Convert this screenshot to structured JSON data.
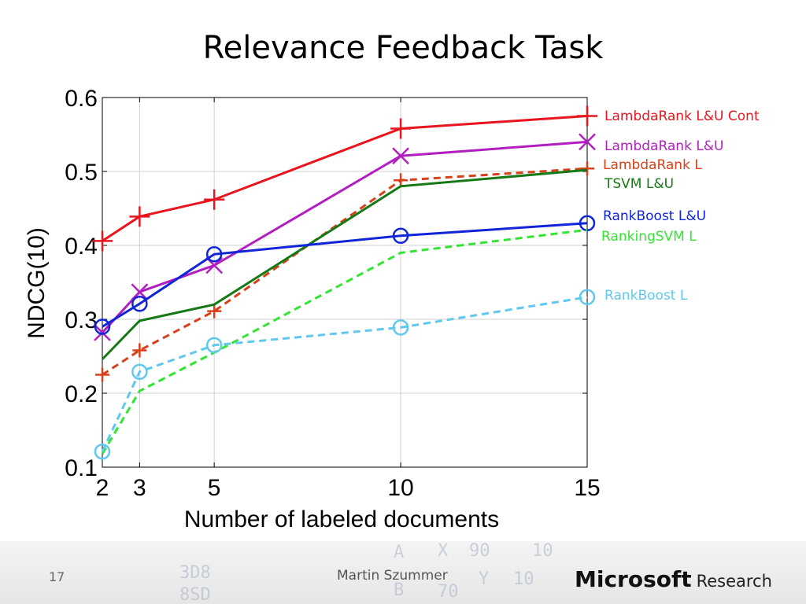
{
  "slide": {
    "title": "Relevance Feedback Task",
    "page_number": "17",
    "author": "Martin Szummer",
    "brand_name": "Microsoft",
    "brand_sub": "Research"
  },
  "chart_data": {
    "type": "line",
    "xlabel": "Number of labeled documents",
    "ylabel": "NDCG(10)",
    "x": [
      2,
      3,
      5,
      10,
      15
    ],
    "xticks": [
      "2",
      "3",
      "5",
      "10",
      "15"
    ],
    "yticks": [
      "0.1",
      "0.2",
      "0.3",
      "0.4",
      "0.5",
      "0.6"
    ],
    "xlim": [
      2,
      15
    ],
    "ylim": [
      0.1,
      0.6
    ],
    "grid": true,
    "legend_position": "right",
    "series": [
      {
        "name": "LambdaRank L&U Cont",
        "color": "#e8141e",
        "dash": false,
        "marker": "plus",
        "values": [
          0.406,
          0.439,
          0.462,
          0.558,
          0.575
        ]
      },
      {
        "name": "LambdaRank L&U",
        "color": "#b21fc0",
        "dash": false,
        "marker": "x",
        "values": [
          0.282,
          0.337,
          0.373,
          0.521,
          0.54
        ]
      },
      {
        "name": "LambdaRank L",
        "color": "#d9401a",
        "dash": true,
        "marker": "plus",
        "values": [
          0.225,
          0.258,
          0.311,
          0.488,
          0.504
        ]
      },
      {
        "name": "TSVM L&U",
        "color": "#157a15",
        "dash": false,
        "marker": "none",
        "values": [
          0.246,
          0.298,
          0.32,
          0.48,
          0.502
        ]
      },
      {
        "name": "RankBoost L&U",
        "color": "#1024d8",
        "dash": false,
        "marker": "circle",
        "values": [
          0.29,
          0.321,
          0.388,
          0.413,
          0.43
        ]
      },
      {
        "name": "RankingSVM L",
        "color": "#33e533",
        "dash": true,
        "marker": "none",
        "values": [
          0.118,
          0.203,
          0.255,
          0.39,
          0.421
        ]
      },
      {
        "name": "RankBoost L",
        "color": "#5ec8ee",
        "dash": true,
        "marker": "circle",
        "values": [
          0.121,
          0.229,
          0.265,
          0.289,
          0.33
        ]
      }
    ]
  },
  "footer_background_marks": [
    "A",
    "X",
    "90",
    "10",
    "3D8",
    "8SD",
    "B",
    "70",
    "Y",
    "10"
  ]
}
